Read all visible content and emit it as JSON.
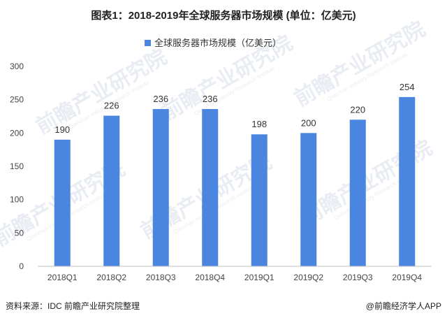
{
  "chart_data": {
    "type": "bar",
    "title": "图表1：2018-2019年全球服务器市场规模 (单位：亿美元)",
    "legend": [
      "全球服务器市场规模（亿美元）"
    ],
    "categories": [
      "2018Q1",
      "2018Q2",
      "2018Q3",
      "2018Q4",
      "2019Q1",
      "2019Q2",
      "2019Q3",
      "2019Q4"
    ],
    "series": [
      {
        "name": "全球服务器市场规模（亿美元）",
        "values": [
          190,
          226,
          236,
          236,
          198,
          200,
          220,
          254
        ]
      }
    ],
    "ylim": [
      0,
      300
    ],
    "yticks": [
      0,
      50,
      100,
      150,
      200,
      250,
      300
    ],
    "grid": false,
    "legend_position": "top-center"
  },
  "colors": {
    "bar": "#4a86e0",
    "axis": "#bfbfbf"
  },
  "footer": {
    "source": "资料来源：IDC 前瞻产业研究院整理",
    "credit": "@前瞻经济学人APP"
  },
  "watermark": {
    "text": "前瞻产业研究院",
    "sub": "Qianzhan Industry Research Institute"
  }
}
